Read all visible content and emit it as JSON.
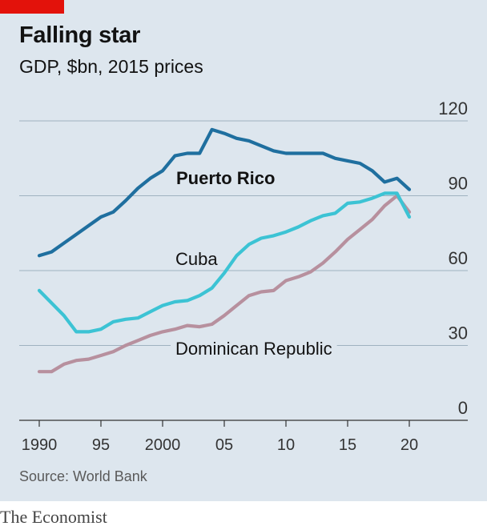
{
  "title": "Falling star",
  "subtitle": "GDP, $bn, 2015 prices",
  "source": "Source: World Bank",
  "brand": "The Economist",
  "colors": {
    "background": "#dde6ee",
    "accent": "#e3120b",
    "puerto_rico": "#1f6f9f",
    "cuba": "#3cc3d4",
    "dominican_republic": "#b7909e",
    "grid": "#9fb2c0"
  },
  "chart_data": {
    "type": "line",
    "title": "Falling star",
    "subtitle": "GDP, $bn, 2015 prices",
    "xlabel": "",
    "ylabel": "",
    "xlim": [
      1990,
      2020
    ],
    "ylim": [
      0,
      120
    ],
    "y_ticks": [
      0,
      30,
      60,
      90,
      120
    ],
    "y_tick_labels": [
      "0",
      "30",
      "60",
      "90",
      "120"
    ],
    "x_ticks": [
      1990,
      1995,
      2000,
      2005,
      2010,
      2015,
      2020
    ],
    "x_tick_labels": [
      "1990",
      "95",
      "2000",
      "05",
      "10",
      "15",
      "20"
    ],
    "grid": true,
    "y_axis_side": "right",
    "x": [
      1990,
      1991,
      1992,
      1993,
      1994,
      1995,
      1996,
      1997,
      1998,
      1999,
      2000,
      2001,
      2002,
      2003,
      2004,
      2005,
      2006,
      2007,
      2008,
      2009,
      2010,
      2011,
      2012,
      2013,
      2014,
      2015,
      2016,
      2017,
      2018,
      2019,
      2020
    ],
    "series": [
      {
        "name": "Puerto Rico",
        "color": "#1f6f9f",
        "values": [
          66,
          67.5,
          71,
          74.5,
          78,
          81.5,
          83.5,
          88,
          93,
          97,
          100,
          106,
          107,
          107,
          116.5,
          115,
          113,
          112,
          110,
          108,
          107,
          107,
          107,
          107,
          105,
          104,
          103,
          100,
          95.5,
          97,
          92.5
        ]
      },
      {
        "name": "Cuba",
        "color": "#3cc3d4",
        "values": [
          52,
          47,
          42,
          35.5,
          35.5,
          36.5,
          39.5,
          40.5,
          41,
          43.5,
          46,
          47.5,
          48,
          50,
          53,
          59,
          66,
          70.5,
          73,
          74,
          75.5,
          77.5,
          80,
          82,
          83,
          87,
          87.5,
          89,
          91,
          91,
          81.5
        ]
      },
      {
        "name": "Dominican Republic",
        "color": "#b7909e",
        "values": [
          19.5,
          19.5,
          22.5,
          24,
          24.5,
          26,
          27.5,
          30,
          32,
          34,
          35.5,
          36.5,
          38,
          37.5,
          38.5,
          42,
          46,
          50,
          51.5,
          52,
          56,
          57.5,
          59.5,
          63,
          67.5,
          72.5,
          76.5,
          80.5,
          86,
          90,
          83.5
        ]
      }
    ]
  }
}
